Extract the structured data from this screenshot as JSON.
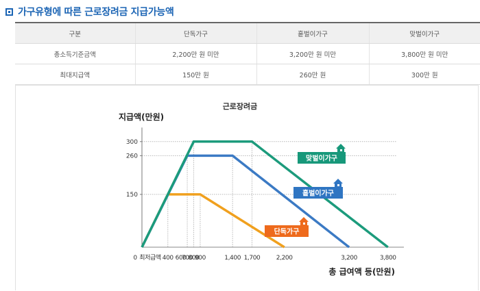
{
  "page": {
    "title": "가구유형에 따른 근로장려금 지급가능액"
  },
  "table": {
    "headers": [
      "구분",
      "단독가구",
      "홑벌이가구",
      "맞벌이가구"
    ],
    "rows": [
      [
        "총소득기준금액",
        "2,200만 원 미만",
        "3,200만 원 미만",
        "3,800만 원 미만"
      ],
      [
        "최대지급액",
        "150만 원",
        "260만 원",
        "300만 원"
      ]
    ]
  },
  "chart_data": {
    "type": "line",
    "title": "근로장려금",
    "ylabel": "지급액(만원)",
    "xlabel": "총 급여액 등(만원)",
    "x_ticks": [
      "0",
      "최저급액",
      "400",
      "600",
      "700",
      "800",
      "900",
      "1,400",
      "1,700",
      "2,200",
      "3,200",
      "3,800"
    ],
    "y_ticks": [
      "150",
      "260",
      "300"
    ],
    "series": [
      {
        "name": "단독가구",
        "color": "#f0a01e",
        "label_color": "#ee6a1c",
        "points": [
          [
            0,
            0
          ],
          [
            400,
            150
          ],
          [
            900,
            150
          ],
          [
            2200,
            0
          ]
        ]
      },
      {
        "name": "홑벌이가구",
        "color": "#3b7ac4",
        "label_color": "#2f75c2",
        "points": [
          [
            0,
            0
          ],
          [
            700,
            260
          ],
          [
            1400,
            260
          ],
          [
            3200,
            0
          ]
        ]
      },
      {
        "name": "맞벌이가구",
        "color": "#1c9b7c",
        "label_color": "#17987a",
        "points": [
          [
            0,
            0
          ],
          [
            800,
            300
          ],
          [
            1700,
            300
          ],
          [
            3800,
            0
          ]
        ]
      }
    ]
  }
}
